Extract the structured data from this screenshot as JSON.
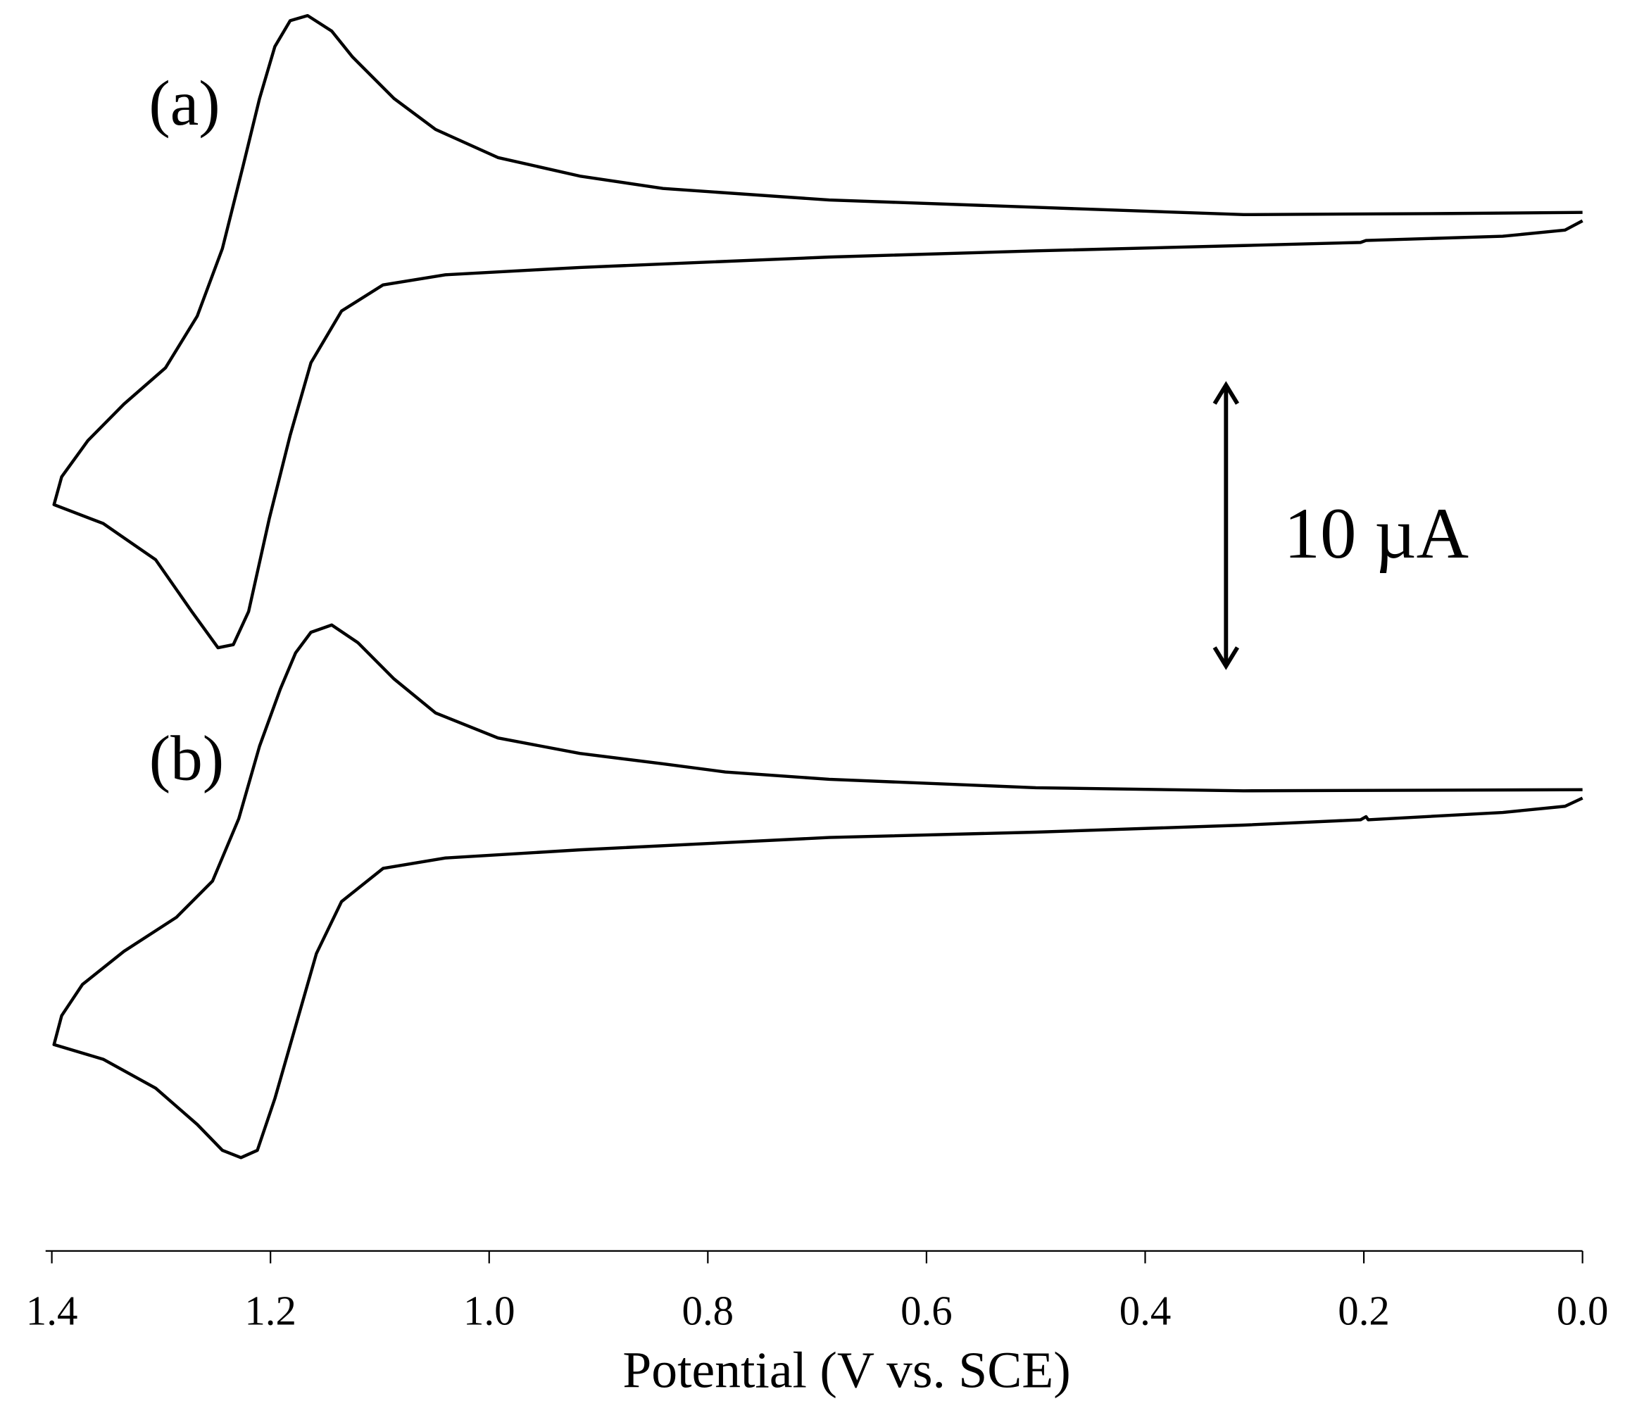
{
  "chart_data": {
    "type": "line",
    "x_label": "Potential (V vs. SCE)",
    "xlim": [
      1.4,
      0
    ],
    "xticks": [
      1.4,
      1.2,
      {
        "value": 1,
        "label": "1.0"
      },
      0.8,
      0.6,
      0.4,
      0.2,
      {
        "value": 0,
        "label": "0.0"
      }
    ],
    "ylim": [
      0,
      44.5
    ],
    "scale_bar": {
      "value": 10,
      "label": "10 µA"
    },
    "series": [
      {
        "name": "(a)",
        "color": "#000000",
        "x": [
          0.0,
          0.12,
          0.31,
          0.5,
          0.689,
          0.841,
          0.917,
          0.992,
          1.049,
          1.087,
          1.125,
          1.144,
          1.166,
          1.182,
          1.196,
          1.21,
          1.225,
          1.244,
          1.267,
          1.296,
          1.334,
          1.367,
          1.391,
          1.398,
          1.353,
          1.305,
          1.272,
          1.248,
          1.234,
          1.22,
          1.201,
          1.182,
          1.163,
          1.135,
          1.097,
          1.04,
          0.917,
          0.689,
          0.5,
          0.31,
          0.203,
          0.198,
          0.073,
          0.016,
          0.0
        ],
        "values": [
          36.95,
          36.91,
          36.87,
          37.13,
          37.39,
          37.8,
          38.24,
          38.9,
          39.9,
          41.0,
          42.48,
          43.4,
          43.95,
          43.77,
          42.85,
          41.0,
          38.61,
          35.66,
          33.26,
          31.42,
          30.13,
          28.83,
          27.54,
          26.55,
          25.88,
          24.59,
          22.75,
          21.46,
          21.57,
          22.75,
          26.07,
          29.02,
          31.6,
          33.44,
          34.37,
          34.73,
          34.99,
          35.36,
          35.58,
          35.77,
          35.88,
          35.95,
          36.1,
          36.32,
          36.65
        ]
      },
      {
        "name": "(b)",
        "color": "#000000",
        "x": [
          0.0,
          0.31,
          0.5,
          0.689,
          0.784,
          0.841,
          0.917,
          0.992,
          1.049,
          1.087,
          1.12,
          1.144,
          1.163,
          1.177,
          1.191,
          1.21,
          1.229,
          1.253,
          1.286,
          1.334,
          1.372,
          1.391,
          1.398,
          1.353,
          1.305,
          1.267,
          1.244,
          1.227,
          1.212,
          1.196,
          1.177,
          1.158,
          1.135,
          1.097,
          1.04,
          0.917,
          0.689,
          0.5,
          0.31,
          0.203,
          0.198,
          0.196,
          0.073,
          0.016,
          0.0
        ],
        "values": [
          16.41,
          16.37,
          16.48,
          16.78,
          17.04,
          17.33,
          17.7,
          18.25,
          19.14,
          20.35,
          21.64,
          22.27,
          22.01,
          21.28,
          19.99,
          17.96,
          15.38,
          13.16,
          11.87,
          10.66,
          9.48,
          8.37,
          7.34,
          6.82,
          5.79,
          4.5,
          3.58,
          3.32,
          3.58,
          5.42,
          8.0,
          10.58,
          12.43,
          13.61,
          13.98,
          14.27,
          14.71,
          14.9,
          15.15,
          15.34,
          15.45,
          15.34,
          15.6,
          15.82,
          16.11
        ]
      }
    ]
  }
}
